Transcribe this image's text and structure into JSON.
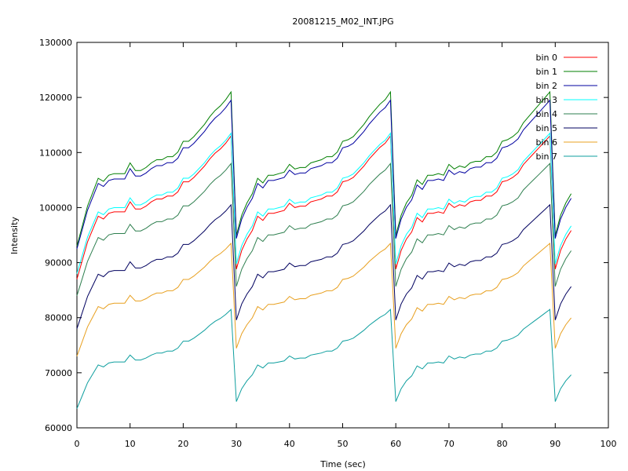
{
  "chart_data": {
    "type": "line",
    "title": "20081215_M02_INT.JPG",
    "xlabel": "Time (sec)",
    "ylabel": "Intensity",
    "xlim": [
      0,
      100
    ],
    "ylim": [
      60000,
      130000
    ],
    "x_ticks": [
      "0",
      "10",
      "20",
      "30",
      "40",
      "50",
      "60",
      "70",
      "80",
      "90",
      "100"
    ],
    "y_ticks": [
      "60000",
      "70000",
      "80000",
      "90000",
      "100000",
      "110000",
      "120000",
      "130000"
    ],
    "grid": false,
    "legend_position": "top-right",
    "x": [
      0,
      1,
      2,
      3,
      4,
      5,
      6,
      7,
      8,
      9,
      10,
      11,
      12,
      13,
      14,
      15,
      16,
      17,
      18,
      19,
      20,
      21,
      22,
      23,
      24,
      25,
      26,
      27,
      28,
      29,
      30,
      31,
      32,
      33,
      34,
      35,
      36,
      37,
      38,
      39,
      40,
      41,
      42,
      43,
      44,
      45,
      46,
      47,
      48,
      49,
      50,
      51,
      52,
      53,
      54,
      55,
      56,
      57,
      58,
      59,
      60,
      61,
      62,
      63,
      64,
      65,
      66,
      67,
      68,
      69,
      70,
      71,
      72,
      73,
      74,
      75,
      76,
      77,
      78,
      79,
      80,
      81,
      82,
      83,
      84,
      85,
      86,
      87,
      88,
      89,
      90,
      91,
      92,
      93
    ],
    "shape": [
      0,
      0.13,
      0.26,
      0.35,
      0.44,
      0.42,
      0.46,
      0.47,
      0.47,
      0.47,
      0.54,
      0.49,
      0.49,
      0.51,
      0.54,
      0.56,
      0.56,
      0.58,
      0.58,
      0.61,
      0.68,
      0.68,
      0.71,
      0.75,
      0.79,
      0.84,
      0.88,
      0.91,
      0.95,
      1,
      0.07,
      0.2,
      0.28,
      0.34,
      0.44,
      0.41,
      0.46,
      0.46,
      0.47,
      0.48,
      0.53,
      0.5,
      0.51,
      0.51,
      0.54,
      0.55,
      0.56,
      0.58,
      0.58,
      0.61,
      0.68,
      0.69,
      0.71,
      0.75,
      0.79,
      0.84,
      0.88,
      0.92,
      0.95,
      1,
      0.07,
      0.2,
      0.28,
      0.33,
      0.43,
      0.4,
      0.46,
      0.46,
      0.47,
      0.46,
      0.53,
      0.5,
      0.52,
      0.51,
      0.54,
      0.55,
      0.55,
      0.58,
      0.58,
      0.61,
      0.68,
      0.69,
      0.71,
      0.74,
      0.8,
      0.84,
      0.88,
      0.92,
      0.96,
      1,
      0.07,
      0.2,
      0.28,
      0.34
    ],
    "series": [
      {
        "name": "bin 0",
        "color": "#ff0000",
        "base": 87000,
        "peak": 113000
      },
      {
        "name": "bin 1",
        "color": "#007f00",
        "base": 93000,
        "peak": 121000
      },
      {
        "name": "bin 2",
        "color": "#00009f",
        "base": 92500,
        "peak": 119500
      },
      {
        "name": "bin 3",
        "color": "#00ffff",
        "base": 88000,
        "peak": 113500
      },
      {
        "name": "bin 4",
        "color": "#2e7f4f",
        "base": 84000,
        "peak": 108000
      },
      {
        "name": "bin 5",
        "color": "#00005f",
        "base": 78000,
        "peak": 100500
      },
      {
        "name": "bin 6",
        "color": "#e8a020",
        "base": 73000,
        "peak": 93500
      },
      {
        "name": "bin 7",
        "color": "#0f9f9f",
        "base": 63500,
        "peak": 81500
      }
    ]
  }
}
